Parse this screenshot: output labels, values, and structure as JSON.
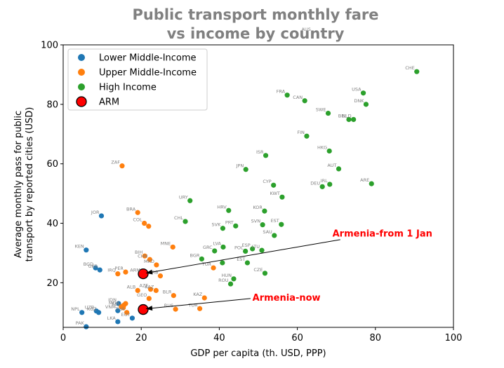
{
  "chart_data": {
    "type": "scatter",
    "title": "Public transport monthly fare\nvs income by country",
    "xlabel": "GDP per capita (th. USD, PPP)",
    "ylabel": "Average monthly pass for public\ntransport by reported cities (USD)",
    "xlim": [
      0,
      100
    ],
    "ylim": [
      5,
      100
    ],
    "xticks": [
      0,
      20,
      40,
      60,
      80,
      100
    ],
    "yticks": [
      20,
      40,
      60,
      80,
      100
    ],
    "grid": false,
    "legend_position": "upper-left",
    "series": [
      {
        "name": "Lower Middle-Income",
        "color": "#1f77b4",
        "points": [
          {
            "label": "JOR",
            "x": 9.8,
            "y": 42.5
          },
          {
            "label": "KEN",
            "x": 5.9,
            "y": 31.0
          },
          {
            "label": "BGD",
            "x": 8.3,
            "y": 25.0
          },
          {
            "label": "UKR",
            "x": 9.4,
            "y": 24.3
          },
          {
            "label": "NPL",
            "x": 4.8,
            "y": 10.0
          },
          {
            "label": "UZB",
            "x": 8.5,
            "y": 10.5
          },
          {
            "label": "KGZ",
            "x": 9.1,
            "y": 10.0
          },
          {
            "label": "LKA",
            "x": 14.0,
            "y": 6.9
          },
          {
            "label": "EGY",
            "x": 17.7,
            "y": 8.1
          },
          {
            "label": "PAK",
            "x": 5.9,
            "y": 5.2
          },
          {
            "label": "VNM",
            "x": 14.0,
            "y": 10.6
          },
          {
            "label": "IDN",
            "x": 14.2,
            "y": 13.0
          }
        ]
      },
      {
        "name": "Upper Middle-Income",
        "color": "#ff7f0e",
        "points": [
          {
            "label": "ZAF",
            "x": 15.1,
            "y": 59.3
          },
          {
            "label": "BRA",
            "x": 19.1,
            "y": 43.6
          },
          {
            "label": "COL",
            "x": 20.8,
            "y": 40.0
          },
          {
            "label": "MEX",
            "x": 21.9,
            "y": 39.0
          },
          {
            "label": "MNE",
            "x": 28.1,
            "y": 32.0
          },
          {
            "label": "BIH",
            "x": 20.9,
            "y": 29.0
          },
          {
            "label": "CHN",
            "x": 22.2,
            "y": 27.8
          },
          {
            "label": "MKD",
            "x": 23.9,
            "y": 26.0
          },
          {
            "label": "PER",
            "x": 16.0,
            "y": 23.6
          },
          {
            "label": "IRQ",
            "x": 14.0,
            "y": 23.0
          },
          {
            "label": "ARM-fill",
            "x": 20.3,
            "y": 23.0
          },
          {
            "label": "SRB",
            "x": 24.9,
            "y": 22.3
          },
          {
            "label": "ALB",
            "x": 19.1,
            "y": 17.4
          },
          {
            "label": "AZE",
            "x": 22.4,
            "y": 17.8
          },
          {
            "label": "KAZ",
            "x": 23.8,
            "y": 17.4
          },
          {
            "label": "BLR",
            "x": 28.3,
            "y": 15.7
          },
          {
            "label": "GEO",
            "x": 22.0,
            "y": 14.7
          },
          {
            "label": "KAZ2",
            "x": 36.2,
            "y": 14.9
          },
          {
            "label": "MDA",
            "x": 14.9,
            "y": 12.0
          },
          {
            "label": "IRN",
            "x": 16.0,
            "y": 13.0
          },
          {
            "label": "THA",
            "x": 16.3,
            "y": 10.0
          },
          {
            "label": "LBN",
            "x": 15.6,
            "y": 12.5
          },
          {
            "label": "RUS",
            "x": 28.8,
            "y": 11.1
          },
          {
            "label": "TUR",
            "x": 35.0,
            "y": 11.3
          },
          {
            "label": "TUR2",
            "x": 38.5,
            "y": 25.0
          },
          {
            "label": "ECU",
            "x": 15.4,
            "y": 11.6
          }
        ]
      },
      {
        "name": "High Income",
        "color": "#2ca02c",
        "points": [
          {
            "label": "CHE",
            "x": 90.6,
            "y": 91.0
          },
          {
            "label": "FRA",
            "x": 57.4,
            "y": 83.1
          },
          {
            "label": "CAN",
            "x": 61.9,
            "y": 81.2
          },
          {
            "label": "USA",
            "x": 76.9,
            "y": 83.8
          },
          {
            "label": "DNK",
            "x": 77.6,
            "y": 80.0
          },
          {
            "label": "SWE",
            "x": 67.9,
            "y": 77.0
          },
          {
            "label": "BEL",
            "x": 73.2,
            "y": 74.9
          },
          {
            "label": "NLD",
            "x": 74.4,
            "y": 74.9
          },
          {
            "label": "FIN",
            "x": 62.4,
            "y": 69.3
          },
          {
            "label": "HKG",
            "x": 68.2,
            "y": 64.3
          },
          {
            "label": "ISR",
            "x": 51.9,
            "y": 62.8
          },
          {
            "label": "AUT",
            "x": 70.6,
            "y": 58.3
          },
          {
            "label": "JPN",
            "x": 46.8,
            "y": 58.1
          },
          {
            "label": "CYP",
            "x": 53.9,
            "y": 52.8
          },
          {
            "label": "DEU",
            "x": 66.4,
            "y": 52.3
          },
          {
            "label": "IRL",
            "x": 68.3,
            "y": 53.1
          },
          {
            "label": "ARE",
            "x": 79.0,
            "y": 53.3
          },
          {
            "label": "KWT",
            "x": 56.1,
            "y": 48.8
          },
          {
            "label": "URY",
            "x": 32.5,
            "y": 47.6
          },
          {
            "label": "HRV",
            "x": 42.4,
            "y": 44.3
          },
          {
            "label": "KOR",
            "x": 51.6,
            "y": 44.1
          },
          {
            "label": "CHL",
            "x": 31.3,
            "y": 40.6
          },
          {
            "label": "SVK",
            "x": 40.9,
            "y": 38.3
          },
          {
            "label": "PRT",
            "x": 44.2,
            "y": 39.1
          },
          {
            "label": "SVN",
            "x": 51.1,
            "y": 39.5
          },
          {
            "label": "EST",
            "x": 55.9,
            "y": 39.6
          },
          {
            "label": "SAU",
            "x": 54.1,
            "y": 35.9
          },
          {
            "label": "LVA",
            "x": 41.0,
            "y": 32.0
          },
          {
            "label": "GRC",
            "x": 38.8,
            "y": 30.7
          },
          {
            "label": "POL",
            "x": 46.7,
            "y": 30.6
          },
          {
            "label": "ESP",
            "x": 48.5,
            "y": 31.4
          },
          {
            "label": "LTU",
            "x": 50.9,
            "y": 30.9
          },
          {
            "label": "BGR",
            "x": 35.5,
            "y": 28.0
          },
          {
            "label": "ROU",
            "x": 40.8,
            "y": 26.7
          },
          {
            "label": "EST2",
            "x": 47.2,
            "y": 26.7
          },
          {
            "label": "CZE",
            "x": 51.7,
            "y": 23.2
          },
          {
            "label": "HUN",
            "x": 43.7,
            "y": 21.3
          },
          {
            "label": "ROU2",
            "x": 42.9,
            "y": 19.6
          }
        ]
      },
      {
        "name": "ARM",
        "color": "#ff0000",
        "points": [
          {
            "label": "ARM-from-1-Jan",
            "x": 20.5,
            "y": 23.0
          },
          {
            "label": "ARM-now",
            "x": 20.5,
            "y": 11.0
          }
        ]
      }
    ],
    "point_labels": [
      {
        "text": "JOR",
        "x": 9.8,
        "y": 42.5
      },
      {
        "text": "KEN",
        "x": 5.9,
        "y": 31.0
      },
      {
        "text": "BGD",
        "x": 8.3,
        "y": 25.0
      },
      {
        "text": "UKR",
        "x": 9.4,
        "y": 24.3
      },
      {
        "text": "NPL",
        "x": 4.8,
        "y": 10.0
      },
      {
        "text": "UZB",
        "x": 8.5,
        "y": 10.5
      },
      {
        "text": "KGZ",
        "x": 9.1,
        "y": 10.0
      },
      {
        "text": "LKA",
        "x": 14.0,
        "y": 6.9
      },
      {
        "text": "EGY",
        "x": 17.7,
        "y": 8.1
      },
      {
        "text": "PAK",
        "x": 5.9,
        "y": 5.2
      },
      {
        "text": "VNM",
        "x": 14.0,
        "y": 10.6
      },
      {
        "text": "IDN",
        "x": 14.2,
        "y": 13.0
      },
      {
        "text": "ZAF",
        "x": 15.1,
        "y": 59.3
      },
      {
        "text": "BRA",
        "x": 19.1,
        "y": 43.6
      },
      {
        "text": "COL",
        "x": 20.8,
        "y": 40.0
      },
      {
        "text": "MNE",
        "x": 28.1,
        "y": 32.0
      },
      {
        "text": "BIH",
        "x": 20.9,
        "y": 29.0
      },
      {
        "text": "CHN",
        "x": 22.2,
        "y": 27.8
      },
      {
        "text": "MKD",
        "x": 23.9,
        "y": 26.0
      },
      {
        "text": "PER",
        "x": 16.0,
        "y": 23.6
      },
      {
        "text": "IRQ",
        "x": 14.0,
        "y": 23.0
      },
      {
        "text": "ARM",
        "x": 20.3,
        "y": 23.0
      },
      {
        "text": "SRB",
        "x": 24.9,
        "y": 22.3
      },
      {
        "text": "ALB",
        "x": 19.1,
        "y": 17.4
      },
      {
        "text": "AZE",
        "x": 22.4,
        "y": 17.8
      },
      {
        "text": "KAZ",
        "x": 23.8,
        "y": 17.4
      },
      {
        "text": "BLR",
        "x": 28.3,
        "y": 15.7
      },
      {
        "text": "GEO",
        "x": 22.0,
        "y": 14.7
      },
      {
        "text": "KAZ",
        "x": 36.2,
        "y": 14.9
      },
      {
        "text": "MDA",
        "x": 14.9,
        "y": 12.0
      },
      {
        "text": "THA",
        "x": 16.3,
        "y": 10.0
      },
      {
        "text": "RUS",
        "x": 28.8,
        "y": 11.1
      },
      {
        "text": "TUR",
        "x": 35.0,
        "y": 11.3
      },
      {
        "text": "TUR",
        "x": 38.5,
        "y": 25.0
      },
      {
        "text": "ECU",
        "x": 15.4,
        "y": 11.6
      },
      {
        "text": "CHE",
        "x": 90.6,
        "y": 91.0
      },
      {
        "text": "FRA",
        "x": 57.4,
        "y": 83.1
      },
      {
        "text": "CAN",
        "x": 61.9,
        "y": 81.2
      },
      {
        "text": "USA",
        "x": 76.9,
        "y": 83.8
      },
      {
        "text": "DNK",
        "x": 77.6,
        "y": 80.0
      },
      {
        "text": "SWE",
        "x": 67.9,
        "y": 77.0
      },
      {
        "text": "BEL",
        "x": 73.2,
        "y": 74.9
      },
      {
        "text": "NLD",
        "x": 74.4,
        "y": 74.9
      },
      {
        "text": "FIN",
        "x": 62.4,
        "y": 69.3
      },
      {
        "text": "HKG",
        "x": 68.2,
        "y": 64.3
      },
      {
        "text": "ISR",
        "x": 51.9,
        "y": 62.8
      },
      {
        "text": "AUT",
        "x": 70.6,
        "y": 58.3
      },
      {
        "text": "JPN",
        "x": 46.8,
        "y": 58.1
      },
      {
        "text": "CYP",
        "x": 53.9,
        "y": 52.8
      },
      {
        "text": "DEU",
        "x": 66.4,
        "y": 52.3
      },
      {
        "text": "IRL",
        "x": 68.3,
        "y": 53.1
      },
      {
        "text": "ARE",
        "x": 79.0,
        "y": 53.3
      },
      {
        "text": "KWT",
        "x": 56.1,
        "y": 48.8
      },
      {
        "text": "URY",
        "x": 32.5,
        "y": 47.6
      },
      {
        "text": "HRV",
        "x": 42.4,
        "y": 44.3
      },
      {
        "text": "KOR",
        "x": 51.6,
        "y": 44.1
      },
      {
        "text": "CHL",
        "x": 31.3,
        "y": 40.6
      },
      {
        "text": "SVK",
        "x": 40.9,
        "y": 38.3
      },
      {
        "text": "PRT",
        "x": 44.2,
        "y": 39.1
      },
      {
        "text": "SVN",
        "x": 51.1,
        "y": 39.5
      },
      {
        "text": "EST",
        "x": 55.9,
        "y": 39.6
      },
      {
        "text": "SAU",
        "x": 54.1,
        "y": 35.9
      },
      {
        "text": "LVA",
        "x": 41.0,
        "y": 32.0
      },
      {
        "text": "GRC",
        "x": 38.8,
        "y": 30.7
      },
      {
        "text": "POL",
        "x": 46.7,
        "y": 30.6
      },
      {
        "text": "ESP",
        "x": 48.5,
        "y": 31.4
      },
      {
        "text": "LTU",
        "x": 50.9,
        "y": 30.9
      },
      {
        "text": "BGR",
        "x": 35.5,
        "y": 28.0
      },
      {
        "text": "EST",
        "x": 47.2,
        "y": 26.7
      },
      {
        "text": "CZE",
        "x": 51.7,
        "y": 23.2
      },
      {
        "text": "HUN",
        "x": 43.7,
        "y": 21.3
      },
      {
        "text": "ROU",
        "x": 42.9,
        "y": 19.6
      },
      {
        "text": "AUS",
        "x": 64.0,
        "y": 104.0
      }
    ],
    "annotations": [
      {
        "text": "Armenia-from 1 Jan",
        "text_x": 69.0,
        "text_y": 35.5,
        "arrow_from_x": 71.0,
        "arrow_from_y": 34.5,
        "arrow_to_x": 20.5,
        "arrow_to_y": 23.0
      },
      {
        "text": "Armenia-now",
        "text_x": 48.5,
        "text_y": 14.0,
        "arrow_from_x": 48.0,
        "arrow_from_y": 14.7,
        "arrow_to_x": 20.5,
        "arrow_to_y": 11.0
      }
    ]
  }
}
